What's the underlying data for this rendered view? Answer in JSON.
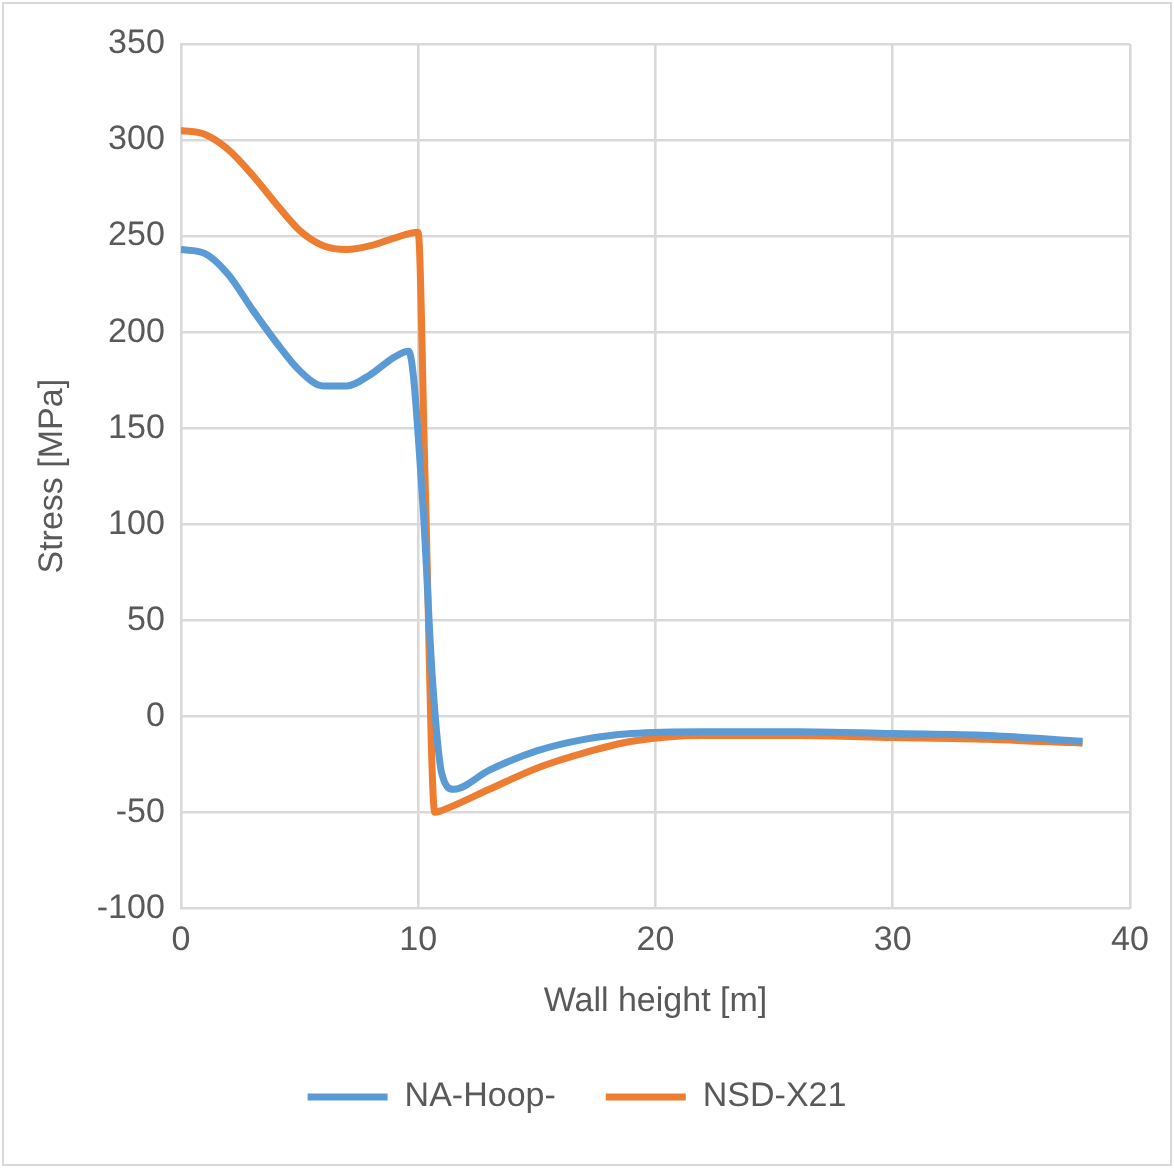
{
  "chart_data": {
    "type": "line",
    "xlabel": "Wall height [m]",
    "ylabel": "Stress [MPa]",
    "xlim": [
      0,
      40
    ],
    "xticks": [
      0,
      10,
      20,
      30,
      40
    ],
    "ylim": [
      -100,
      350
    ],
    "yticks": [
      -100,
      -50,
      0,
      50,
      100,
      150,
      200,
      250,
      300,
      350
    ],
    "grid": true,
    "legend": "bottom",
    "marker": "none",
    "line_style": "solid",
    "series": [
      {
        "name": "NA-Hoop-",
        "color": "#5b9bd5",
        "x": [
          0,
          1,
          2,
          3,
          4,
          5,
          6,
          7,
          8,
          9,
          9.6,
          10.2,
          10.6,
          11,
          11.5,
          13,
          15,
          17,
          19,
          22,
          26,
          30,
          34,
          38
        ],
        "values": [
          243,
          241,
          230,
          212,
          195,
          180,
          172,
          172,
          178,
          187,
          190,
          110,
          20,
          -30,
          -38,
          -28,
          -18,
          -12,
          -9,
          -8,
          -8,
          -9,
          -10,
          -13
        ]
      },
      {
        "name": "NSD-X21",
        "color": "#ed7d31",
        "x": [
          0,
          1,
          2,
          3,
          4,
          5,
          6,
          7,
          8,
          9,
          10,
          10.3,
          10.7,
          11,
          13,
          15,
          17,
          19,
          22,
          26,
          30,
          34,
          38
        ],
        "values": [
          305,
          303,
          295,
          282,
          267,
          253,
          245,
          243,
          245,
          249,
          252,
          120,
          -50,
          -49,
          -38,
          -27,
          -19,
          -13,
          -10,
          -10,
          -11,
          -12,
          -14
        ]
      }
    ]
  }
}
